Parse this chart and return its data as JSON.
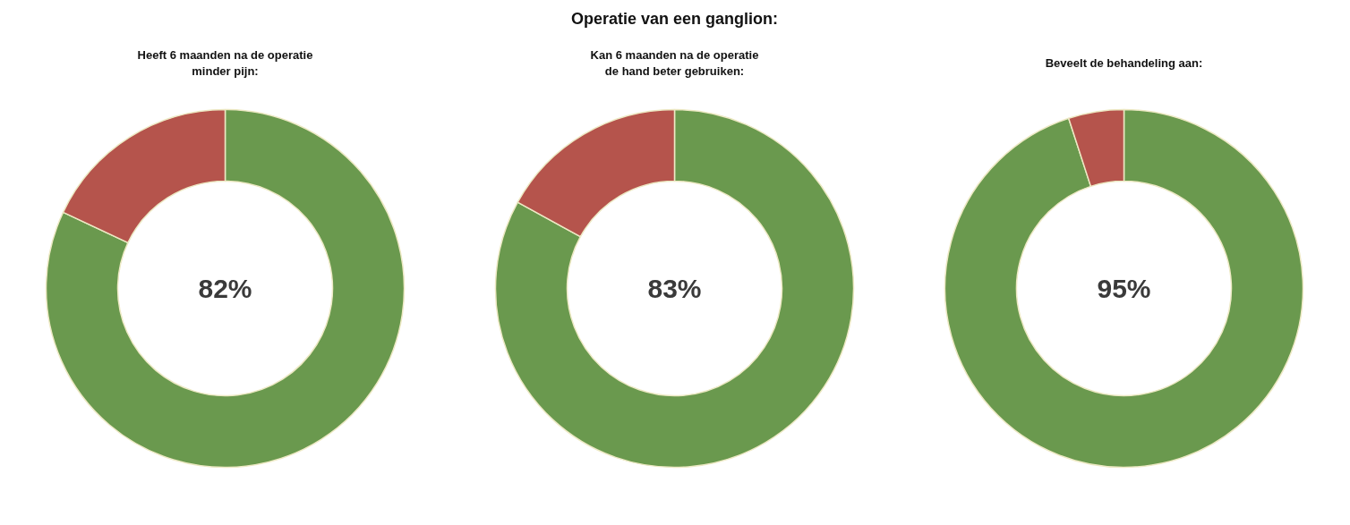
{
  "chart_data": [
    {
      "type": "donut",
      "subtitle": "Heeft 6 maanden na de operatie\nminder pijn:",
      "categories": [
        null,
        null
      ],
      "values": [
        82,
        18
      ],
      "colors": [
        "#6a994e",
        "#b5544c"
      ],
      "annotations": [
        "82%"
      ]
    },
    {
      "type": "donut",
      "title": "Operatie van een ganglion:",
      "subtitle": "Kan 6 maanden na de operatie\nde hand beter gebruiken:",
      "categories": [
        null,
        null
      ],
      "values": [
        83,
        17
      ],
      "colors": [
        "#6a994e",
        "#b5544c"
      ],
      "annotations": [
        "83%"
      ]
    },
    {
      "type": "donut",
      "subtitle": "Beveelt de behandeling aan:",
      "categories": [
        null,
        null
      ],
      "values": [
        95,
        5
      ],
      "colors": [
        "#6a994e",
        "#b5544c"
      ],
      "annotations": [
        "95%"
      ]
    }
  ]
}
